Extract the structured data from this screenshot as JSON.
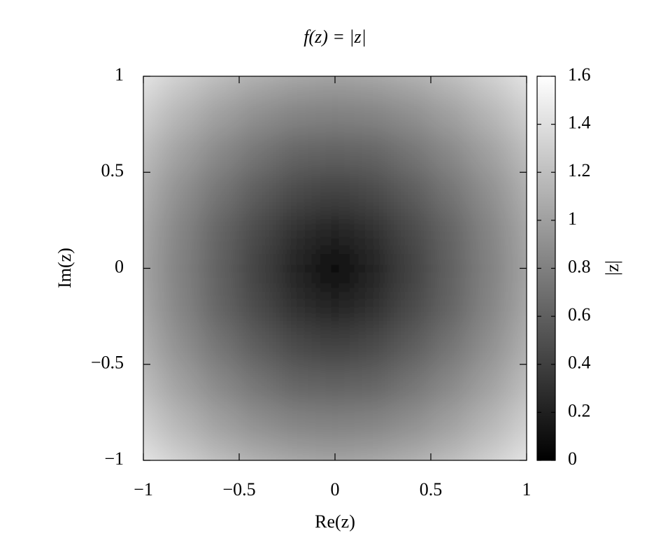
{
  "chart_data": {
    "type": "heatmap",
    "title": "f(z) = |z|",
    "xlabel": "Re(z)",
    "ylabel": "Im(z)",
    "colorbar_label": "|z|",
    "x": [
      -1,
      -0.8,
      -0.6,
      -0.4,
      -0.2,
      0,
      0.2,
      0.4,
      0.6,
      0.8,
      1
    ],
    "y": [
      -1,
      -0.8,
      -0.6,
      -0.4,
      -0.2,
      0,
      0.2,
      0.4,
      0.6,
      0.8,
      1
    ],
    "values": [
      [
        1.41,
        1.28,
        1.17,
        1.08,
        1.02,
        1,
        1.02,
        1.08,
        1.17,
        1.28,
        1.41
      ],
      [
        1.28,
        1.13,
        1,
        0.89,
        0.82,
        0.8,
        0.82,
        0.89,
        1,
        1.13,
        1.28
      ],
      [
        1.17,
        1,
        0.85,
        0.72,
        0.63,
        0.6,
        0.63,
        0.72,
        0.85,
        1,
        1.17
      ],
      [
        1.08,
        0.89,
        0.72,
        0.57,
        0.45,
        0.4,
        0.45,
        0.57,
        0.72,
        0.89,
        1.08
      ],
      [
        1.02,
        0.82,
        0.63,
        0.45,
        0.28,
        0.2,
        0.28,
        0.45,
        0.63,
        0.82,
        1.02
      ],
      [
        1,
        0.8,
        0.6,
        0.4,
        0.2,
        0,
        0.2,
        0.4,
        0.6,
        0.8,
        1
      ],
      [
        1.02,
        0.82,
        0.63,
        0.45,
        0.28,
        0.2,
        0.28,
        0.45,
        0.63,
        0.82,
        1.02
      ],
      [
        1.08,
        0.89,
        0.72,
        0.57,
        0.45,
        0.4,
        0.45,
        0.57,
        0.72,
        0.89,
        1.08
      ],
      [
        1.17,
        1,
        0.85,
        0.72,
        0.63,
        0.6,
        0.63,
        0.72,
        0.85,
        1,
        1.17
      ],
      [
        1.28,
        1.13,
        1,
        0.89,
        0.82,
        0.8,
        0.82,
        0.89,
        1,
        1.13,
        1.28
      ],
      [
        1.41,
        1.28,
        1.17,
        1.08,
        1.02,
        1,
        1.02,
        1.08,
        1.17,
        1.28,
        1.41
      ]
    ],
    "xlim": [
      -1,
      1
    ],
    "ylim": [
      -1,
      1
    ],
    "xticks": [
      {
        "value": -1,
        "label": "−1"
      },
      {
        "value": -0.5,
        "label": "−0.5"
      },
      0,
      0.5,
      1
    ],
    "yticks": [
      {
        "value": -1,
        "label": "−1"
      },
      {
        "value": -0.5,
        "label": "−0.5"
      },
      0,
      0.5,
      1
    ],
    "clim": [
      0,
      1.6
    ],
    "cticks": [
      0,
      0.2,
      0.4,
      0.6,
      0.8,
      1,
      1.2,
      1.4,
      1.6
    ],
    "colormap": [
      "#000000",
      "#ffffff"
    ]
  }
}
